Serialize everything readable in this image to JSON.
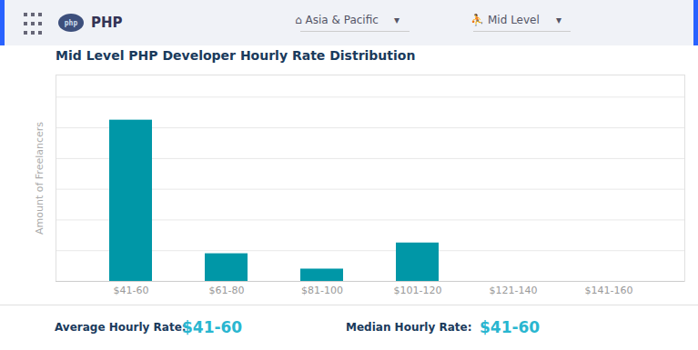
{
  "chart_data": {
    "type": "bar",
    "title": "Mid Level PHP Developer Hourly Rate Distribution",
    "categories": [
      "$41-60",
      "$61-80",
      "$81-100",
      "$101-120",
      "$121-140",
      "$141-160"
    ],
    "values": [
      10.5,
      1.8,
      0.8,
      2.5,
      0.0,
      0.0
    ],
    "color": "#0097a7",
    "ylabel": "Amount of Freelancers",
    "ylim": [
      0,
      13.44
    ],
    "yticks": [
      0,
      2,
      4,
      6,
      8,
      10,
      12
    ],
    "grid": true,
    "tick_labels": "x",
    "annotations": [
      "php",
      "PHP",
      "⌂  Asia & Pacific",
      "▾",
      "⛹  Mid Level",
      "▾",
      "Average Hourly Rate:",
      "$41-60",
      "Median Hourly Rate:",
      "$41-60"
    ]
  }
}
